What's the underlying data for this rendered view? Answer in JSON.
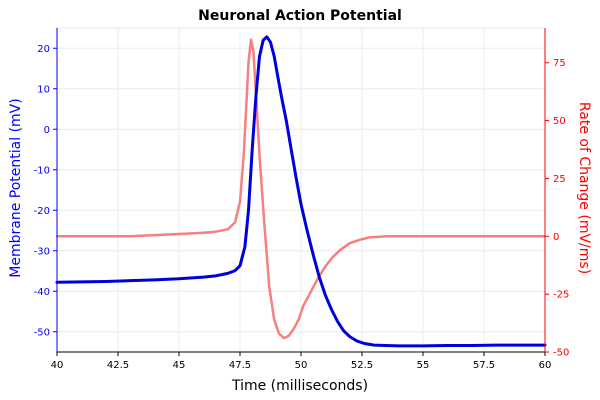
{
  "chart_data": {
    "type": "line",
    "title": "Neuronal Action Potential",
    "xlabel": "Time (milliseconds)",
    "ylabel_left": "Membrane Potential (mV)",
    "ylabel_right": "Rate of Change (mV/ms)",
    "xlim": [
      40,
      60
    ],
    "ylim_left": [
      -55,
      25
    ],
    "ylim_right": [
      -50,
      90
    ],
    "x_ticks": [
      40,
      42.5,
      45,
      47.5,
      50,
      52.5,
      55,
      57.5,
      60
    ],
    "x_tick_labels": [
      "40",
      "42.5",
      "45",
      "47.5",
      "50",
      "52.5",
      "55",
      "57.5",
      "60"
    ],
    "y_left_ticks": [
      -50,
      -40,
      -30,
      -20,
      -10,
      0,
      10,
      20
    ],
    "y_left_tick_labels": [
      "-50",
      "-40",
      "-30",
      "-20",
      "-10",
      "0",
      "10",
      "20"
    ],
    "y_right_ticks": [
      -50,
      -25,
      0,
      25,
      50,
      75
    ],
    "y_right_tick_labels": [
      "-50",
      "-25",
      "0",
      "25",
      "50",
      "75"
    ],
    "grid": true,
    "colors": {
      "left_axis": "#0000ff",
      "right_axis": "#ff0000",
      "membrane": "#0000dd",
      "rate": "#f48080"
    },
    "series": [
      {
        "axis": "left",
        "x": [
          40,
          42,
          44,
          45,
          46,
          46.5,
          47,
          47.3,
          47.5,
          47.7,
          47.85,
          48.0,
          48.15,
          48.3,
          48.45,
          48.6,
          48.75,
          48.9,
          49.05,
          49.2,
          49.4,
          49.6,
          49.8,
          50.0,
          50.25,
          50.5,
          50.75,
          51.0,
          51.25,
          51.5,
          51.75,
          52.0,
          52.3,
          52.6,
          53.0,
          54,
          55,
          56,
          57,
          58,
          59,
          60
        ],
        "y": [
          -37.8,
          -37.6,
          -37.2,
          -36.9,
          -36.5,
          -36.2,
          -35.6,
          -34.9,
          -33.7,
          -29,
          -20,
          -5,
          8,
          18,
          22,
          22.8,
          21.5,
          18,
          13,
          8,
          2,
          -5,
          -12,
          -18.5,
          -25,
          -31,
          -36.5,
          -41,
          -44.5,
          -47.5,
          -49.8,
          -51.2,
          -52.3,
          -52.9,
          -53.3,
          -53.5,
          -53.5,
          -53.4,
          -53.4,
          -53.3,
          -53.3,
          -53.3
        ]
      },
      {
        "axis": "right",
        "x": [
          40,
          41,
          42,
          43,
          44,
          45,
          46,
          46.5,
          47,
          47.3,
          47.5,
          47.65,
          47.75,
          47.85,
          47.95,
          48.05,
          48.15,
          48.3,
          48.5,
          48.7,
          48.9,
          49.1,
          49.3,
          49.5,
          49.7,
          49.9,
          50.1,
          50.4,
          50.7,
          51.0,
          51.3,
          51.6,
          52.0,
          52.4,
          52.8,
          53.5,
          54,
          55,
          56,
          57,
          58,
          59,
          60
        ],
        "y": [
          0,
          0,
          0,
          0,
          0.5,
          1,
          1.5,
          2,
          3,
          6,
          15,
          35,
          55,
          75,
          85,
          80,
          62,
          35,
          5,
          -22,
          -36,
          -42,
          -44,
          -43,
          -40,
          -36,
          -30,
          -24,
          -18,
          -13,
          -9,
          -6,
          -3,
          -1.5,
          -0.5,
          0,
          0,
          0,
          0,
          0,
          0,
          0,
          0
        ]
      }
    ]
  }
}
